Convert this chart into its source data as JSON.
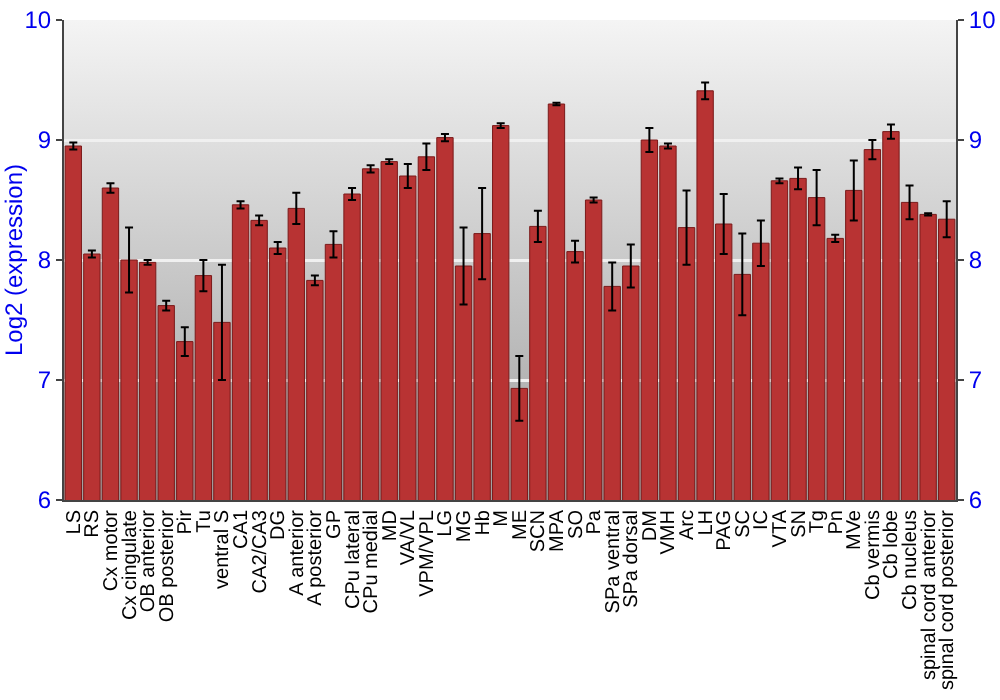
{
  "chart_data": {
    "type": "bar",
    "categories": [
      "LS",
      "RS",
      "Cx motor",
      "Cx cingulate",
      "OB anterior",
      "OB posterior",
      "Pir",
      "Tu",
      "ventral S",
      "CA1",
      "CA2/CA3",
      "DG",
      "A anterior",
      "A posterior",
      "GP",
      "CPu lateral",
      "CPu medial",
      "MD",
      "VA/VL",
      "VPM/VPL",
      "LG",
      "MG",
      "Hb",
      "M",
      "ME",
      "SCN",
      "MPA",
      "SO",
      "Pa",
      "SPa ventral",
      "SPa dorsal",
      "DM",
      "VMH",
      "Arc",
      "LH",
      "PAG",
      "SC",
      "IC",
      "VTA",
      "SN",
      "Tg",
      "Pn",
      "MVe",
      "Cb vermis",
      "Cb lobe",
      "Cb nucleus",
      "spinal cord anterior",
      "spinal cord posterior"
    ],
    "values": [
      8.95,
      8.05,
      8.6,
      8.0,
      7.98,
      7.62,
      7.32,
      7.87,
      7.48,
      8.46,
      8.33,
      8.1,
      8.43,
      7.83,
      8.13,
      8.55,
      8.76,
      8.82,
      8.7,
      8.86,
      9.02,
      7.95,
      8.22,
      9.12,
      6.93,
      8.28,
      9.3,
      8.07,
      8.5,
      7.78,
      7.95,
      9.0,
      8.95,
      8.27,
      9.41,
      8.3,
      7.88,
      8.14,
      8.66,
      8.68,
      8.52,
      8.18,
      8.58,
      8.92,
      9.07,
      8.48,
      8.38,
      8.34
    ],
    "errors": [
      0.03,
      0.03,
      0.04,
      0.27,
      0.02,
      0.04,
      0.12,
      0.13,
      0.48,
      0.03,
      0.04,
      0.05,
      0.13,
      0.04,
      0.11,
      0.05,
      0.03,
      0.02,
      0.1,
      0.11,
      0.03,
      0.32,
      0.38,
      0.02,
      0.27,
      0.13,
      0.01,
      0.09,
      0.02,
      0.2,
      0.18,
      0.1,
      0.02,
      0.31,
      0.07,
      0.25,
      0.34,
      0.19,
      0.02,
      0.09,
      0.23,
      0.03,
      0.25,
      0.08,
      0.06,
      0.14,
      0.01,
      0.15
    ],
    "color": "#b83333",
    "ylabel": "Log2 (expression)",
    "ylim": [
      6,
      10
    ],
    "yticks": [
      6,
      7,
      8,
      9,
      10
    ],
    "y2lim": [
      6,
      10
    ],
    "y2ticks": [
      6,
      7,
      8,
      9,
      10
    ],
    "grid": "y"
  }
}
